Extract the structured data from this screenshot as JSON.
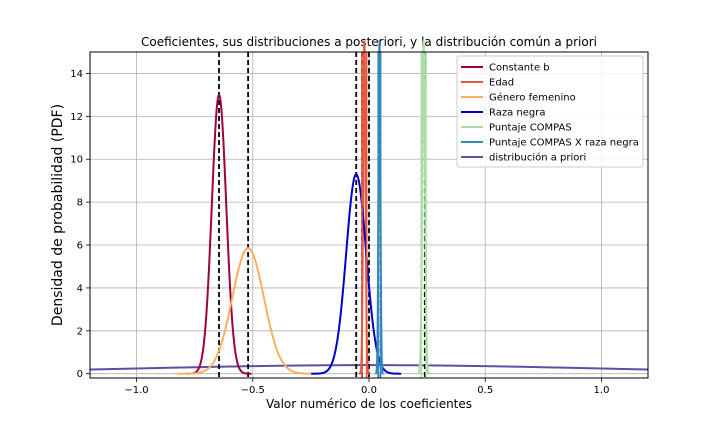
{
  "chart_data": {
    "type": "line",
    "title": "Coeficientes, sus distribuciones a posteriori, y la distribución común a priori",
    "xlabel": "Valor numérico de los coeficientes",
    "ylabel": "Densidad de probabilidad (PDF)",
    "xlim": [
      -1.2,
      1.2
    ],
    "ylim": [
      -0.2,
      15
    ],
    "xticks": [
      -1.0,
      -0.5,
      0.0,
      0.5,
      1.0
    ],
    "xtick_labels": [
      "−1.0",
      "−0.5",
      "0.0",
      "0.5",
      "1.0"
    ],
    "yticks": [
      0,
      2,
      4,
      6,
      8,
      10,
      12,
      14
    ],
    "ytick_labels": [
      "0",
      "2",
      "4",
      "6",
      "8",
      "10",
      "12",
      "14"
    ],
    "grid": true,
    "legend_position": "top-right",
    "series": [
      {
        "name": "Constante b",
        "color": "#9e0142",
        "kind": "gaussian",
        "mean": -0.645,
        "peak": 13.0,
        "sd": 0.031,
        "intervals": [
          -0.645
        ]
      },
      {
        "name": "Edad",
        "color": "#e8583f",
        "kind": "gaussian",
        "mean": -0.02,
        "peak": 15.5,
        "sd": 0.005,
        "intervals": [
          -0.03,
          -0.01
        ]
      },
      {
        "name": "Género femenino",
        "color": "#fdae61",
        "kind": "gaussian",
        "mean": -0.52,
        "peak": 5.85,
        "sd": 0.068,
        "intervals": [
          -0.52
        ]
      },
      {
        "name": "Raza negra",
        "color": "#0000cc",
        "kind": "gaussian",
        "mean": -0.055,
        "peak": 9.3,
        "sd": 0.043,
        "intervals": [
          -0.055
        ]
      },
      {
        "name": "Puntaje COMPAS",
        "color": "#abdda4",
        "kind": "gaussian",
        "mean": 0.235,
        "peak": 15.5,
        "sd": 0.006,
        "intervals": [
          0.225,
          0.245
        ]
      },
      {
        "name": "Puntaje COMPAS X raza negra",
        "color": "#3288bd",
        "kind": "gaussian",
        "mean": 0.045,
        "peak": 15.5,
        "sd": 0.004,
        "intervals": [
          0.04,
          0.05
        ]
      },
      {
        "name": "distribución a priori",
        "color": "#5e4fa2",
        "kind": "gaussian",
        "mean": 0.0,
        "peak": 0.4,
        "sd": 1.0,
        "intervals": []
      }
    ],
    "vlines_black_dashed": [
      -0.645,
      -0.52,
      -0.055,
      -0.03,
      0.0,
      0.04,
      0.24
    ]
  }
}
